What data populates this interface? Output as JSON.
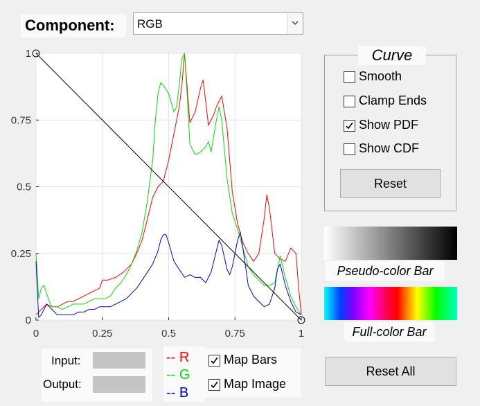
{
  "header": {
    "component_label": "Component:",
    "component_value": "RGB"
  },
  "plot": {
    "y_ticks": [
      "0",
      "0.25",
      "0.5",
      "0.75",
      "1"
    ],
    "x_ticks": [
      "0",
      "0.25",
      "0.5",
      "0.75",
      "1"
    ]
  },
  "chart_data": {
    "type": "line",
    "xlim": [
      0,
      1
    ],
    "ylim": [
      0,
      1
    ],
    "grid": true,
    "series": [
      {
        "name": "R",
        "color": "#ff0000",
        "x": [
          0,
          0.02,
          0.04,
          0.06,
          0.08,
          0.1,
          0.12,
          0.14,
          0.16,
          0.18,
          0.2,
          0.22,
          0.24,
          0.25,
          0.27,
          0.3,
          0.33,
          0.36,
          0.38,
          0.4,
          0.42,
          0.44,
          0.46,
          0.48,
          0.5,
          0.52,
          0.54,
          0.55,
          0.56,
          0.58,
          0.6,
          0.62,
          0.63,
          0.65,
          0.67,
          0.68,
          0.7,
          0.72,
          0.74,
          0.76,
          0.78,
          0.8,
          0.82,
          0.84,
          0.86,
          0.87,
          0.88,
          0.9,
          0.92,
          0.94,
          0.96,
          0.98,
          0.99,
          1
        ],
        "y": [
          0.02,
          0.04,
          0.06,
          0.05,
          0.05,
          0.06,
          0.07,
          0.07,
          0.08,
          0.09,
          0.1,
          0.11,
          0.12,
          0.15,
          0.15,
          0.16,
          0.18,
          0.21,
          0.25,
          0.3,
          0.38,
          0.46,
          0.5,
          0.52,
          0.6,
          0.7,
          0.8,
          0.88,
          1.0,
          0.74,
          0.78,
          0.87,
          0.9,
          0.73,
          0.77,
          0.8,
          0.84,
          0.72,
          0.48,
          0.36,
          0.29,
          0.25,
          0.22,
          0.25,
          0.38,
          0.47,
          0.42,
          0.25,
          0.23,
          0.22,
          0.27,
          0.25,
          0.12,
          0.02
        ]
      },
      {
        "name": "G",
        "color": "#00e000",
        "x": [
          0,
          0.01,
          0.02,
          0.03,
          0.04,
          0.05,
          0.06,
          0.07,
          0.08,
          0.1,
          0.12,
          0.14,
          0.16,
          0.18,
          0.2,
          0.22,
          0.24,
          0.26,
          0.28,
          0.3,
          0.32,
          0.34,
          0.36,
          0.38,
          0.4,
          0.42,
          0.44,
          0.45,
          0.46,
          0.47,
          0.48,
          0.5,
          0.52,
          0.53,
          0.54,
          0.55,
          0.56,
          0.57,
          0.58,
          0.6,
          0.62,
          0.64,
          0.65,
          0.66,
          0.68,
          0.69,
          0.7,
          0.72,
          0.74,
          0.76,
          0.78,
          0.8,
          0.82,
          0.84,
          0.86,
          0.88,
          0.9,
          0.92,
          0.94,
          0.96,
          0.98,
          1
        ],
        "y": [
          0.25,
          0.08,
          0.12,
          0.13,
          0.1,
          0.07,
          0.05,
          0.05,
          0.05,
          0.04,
          0.05,
          0.06,
          0.06,
          0.06,
          0.07,
          0.08,
          0.08,
          0.08,
          0.09,
          0.12,
          0.14,
          0.17,
          0.21,
          0.26,
          0.33,
          0.45,
          0.6,
          0.75,
          0.85,
          0.89,
          0.88,
          0.85,
          0.78,
          0.8,
          0.88,
          0.98,
          1.0,
          0.84,
          0.66,
          0.62,
          0.63,
          0.65,
          0.67,
          0.63,
          0.75,
          0.8,
          0.75,
          0.53,
          0.4,
          0.34,
          0.27,
          0.2,
          0.17,
          0.15,
          0.13,
          0.13,
          0.14,
          0.24,
          0.16,
          0.09,
          0.05,
          0.02
        ]
      },
      {
        "name": "B",
        "color": "#0000e0",
        "x": [
          0,
          0.01,
          0.02,
          0.03,
          0.04,
          0.05,
          0.06,
          0.08,
          0.1,
          0.12,
          0.14,
          0.16,
          0.18,
          0.2,
          0.22,
          0.24,
          0.26,
          0.28,
          0.3,
          0.32,
          0.34,
          0.36,
          0.38,
          0.4,
          0.42,
          0.44,
          0.46,
          0.47,
          0.48,
          0.49,
          0.5,
          0.52,
          0.54,
          0.56,
          0.58,
          0.6,
          0.62,
          0.64,
          0.66,
          0.68,
          0.69,
          0.7,
          0.72,
          0.73,
          0.74,
          0.76,
          0.77,
          0.78,
          0.8,
          0.82,
          0.84,
          0.86,
          0.88,
          0.9,
          0.91,
          0.92,
          0.94,
          0.96,
          0.98,
          1
        ],
        "y": [
          0.22,
          0.01,
          0.02,
          0.04,
          0.06,
          0.05,
          0.04,
          0.02,
          0.02,
          0.02,
          0.02,
          0.03,
          0.03,
          0.04,
          0.04,
          0.05,
          0.05,
          0.05,
          0.06,
          0.07,
          0.08,
          0.1,
          0.12,
          0.15,
          0.18,
          0.21,
          0.26,
          0.3,
          0.32,
          0.32,
          0.29,
          0.22,
          0.19,
          0.16,
          0.17,
          0.16,
          0.16,
          0.14,
          0.18,
          0.26,
          0.3,
          0.28,
          0.19,
          0.17,
          0.2,
          0.3,
          0.33,
          0.27,
          0.13,
          0.09,
          0.07,
          0.05,
          0.06,
          0.12,
          0.19,
          0.21,
          0.13,
          0.07,
          0.03,
          0.02
        ]
      },
      {
        "name": "curve",
        "color": "#000000",
        "x": [
          0,
          1
        ],
        "y": [
          1,
          0
        ]
      }
    ]
  },
  "curve_panel": {
    "title": "Curve",
    "options": [
      {
        "label": "Smooth",
        "checked": false
      },
      {
        "label": "Clamp Ends",
        "checked": false
      },
      {
        "label": "Show PDF",
        "checked": true
      },
      {
        "label": "Show CDF",
        "checked": false
      }
    ],
    "reset_label": "Reset"
  },
  "bars": {
    "pseudo_label": "Pseudo-color Bar",
    "full_label": "Full-color Bar"
  },
  "io": {
    "input_label": "Input:",
    "output_label": "Output:",
    "input_value": "",
    "output_value": ""
  },
  "legend": [
    {
      "label": "-- R",
      "color": "#ff0000"
    },
    {
      "label": "-- G",
      "color": "#00dd00"
    },
    {
      "label": "-- B",
      "color": "#0000cc"
    }
  ],
  "map_options": [
    {
      "label": "Map Bars",
      "checked": true
    },
    {
      "label": "Map Image",
      "checked": true
    }
  ],
  "reset_all_label": "Reset All"
}
